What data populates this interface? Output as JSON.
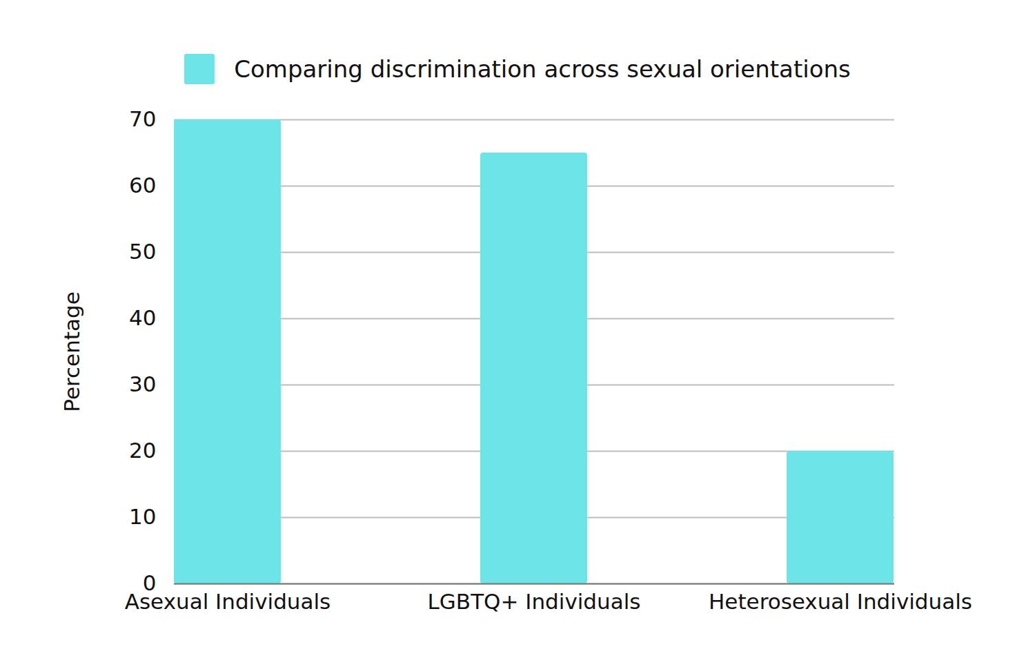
{
  "chart_data": {
    "type": "bar",
    "categories": [
      "Asexual Individuals",
      "LGBTQ+ Individuals",
      "Heterosexual Individuals"
    ],
    "series": [
      {
        "name": "Comparing discrimination across sexual orientations",
        "color": "#6ce4e8",
        "values": [
          70,
          65,
          20
        ]
      }
    ],
    "y_label": "Percentage",
    "ylim": [
      0,
      70
    ],
    "yticks": [
      0,
      10,
      20,
      30,
      40,
      50,
      60,
      70
    ],
    "grid": true,
    "legend": "top"
  }
}
